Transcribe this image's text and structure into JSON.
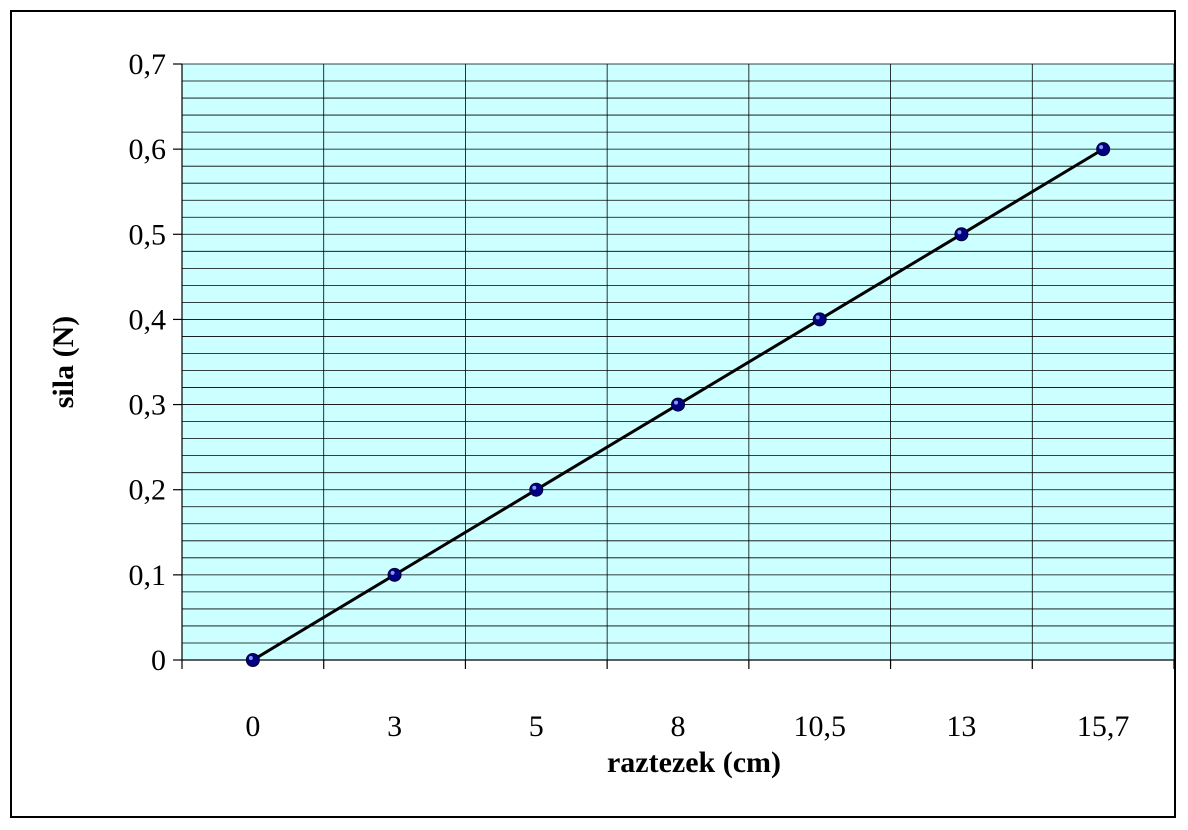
{
  "chart_data": {
    "type": "line",
    "title": "",
    "xlabel": "raztezek (cm)",
    "ylabel": "sila (N)",
    "categories": [
      "0",
      "3",
      "5",
      "8",
      "10,5",
      "13",
      "15,7"
    ],
    "series": [
      {
        "values": [
          0,
          0.1,
          0.2,
          0.3,
          0.4,
          0.5,
          0.6
        ],
        "line_color": "#000000",
        "marker_color": "#000080"
      }
    ],
    "ylim": [
      0,
      0.7
    ],
    "y_ticks": [
      {
        "value": 0,
        "label": "0"
      },
      {
        "value": 0.1,
        "label": "0,1"
      },
      {
        "value": 0.2,
        "label": "0,2"
      },
      {
        "value": 0.3,
        "label": "0,3"
      },
      {
        "value": 0.4,
        "label": "0,4"
      },
      {
        "value": 0.5,
        "label": "0,5"
      },
      {
        "value": 0.6,
        "label": "0,6"
      },
      {
        "value": 0.7,
        "label": "0,7"
      }
    ],
    "y_minor_step": 0.02,
    "grid": true,
    "legend": "none",
    "plot_background": "#ccffff",
    "grid_color": "#000000"
  }
}
